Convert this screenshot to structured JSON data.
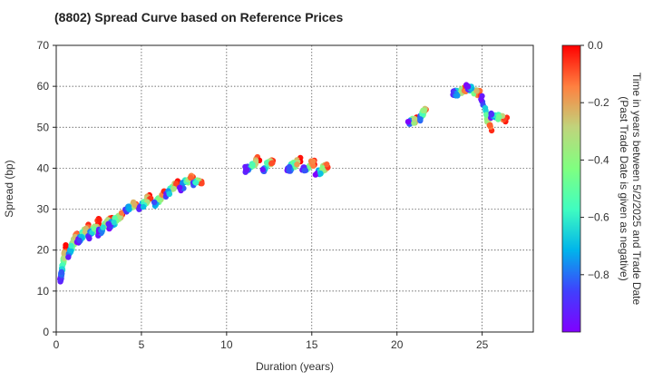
{
  "chart_data": {
    "type": "scatter",
    "title": "(8802)   Spread Curve based on Reference Prices",
    "xlabel": "Duration (years)",
    "ylabel": "Spread (bp)",
    "xlim": [
      0,
      28
    ],
    "ylim": [
      0,
      70
    ],
    "xticks": [
      0,
      5,
      10,
      15,
      20,
      25
    ],
    "yticks": [
      0,
      10,
      20,
      30,
      40,
      50,
      60,
      70
    ],
    "grid": true,
    "colorbar": {
      "label_line1": "Time in years between 5/2/2025 and Trade Date",
      "label_line2": "(Past Trade Date is given as negative)",
      "range": [
        -1.0,
        0.0
      ],
      "ticks": [
        0.0,
        -0.2,
        -0.4,
        -0.6,
        -0.8
      ],
      "tick_labels": [
        "0.0",
        "−0.2",
        "−0.4",
        "−0.6",
        "−0.8"
      ],
      "colormap": "rainbow",
      "stops": [
        "#8000ff",
        "#4040fd",
        "#00b4eb",
        "#40fdc0",
        "#80ff80",
        "#c0d47c",
        "#ff8040",
        "#ff0000"
      ]
    },
    "clusters": [
      {
        "x0": 0.2,
        "x1": 0.6,
        "y_new": 21,
        "y_old": 12.5,
        "n": 40
      },
      {
        "x0": 0.6,
        "x1": 1.3,
        "y_new": 24,
        "y_old": 18,
        "n": 30
      },
      {
        "x0": 1.2,
        "x1": 2.0,
        "y_new": 26,
        "y_old": 22,
        "n": 35
      },
      {
        "x0": 1.8,
        "x1": 2.6,
        "y_new": 27,
        "y_old": 23,
        "n": 35
      },
      {
        "x0": 2.4,
        "x1": 3.3,
        "y_new": 28,
        "y_old": 24,
        "n": 35
      },
      {
        "x0": 3.0,
        "x1": 4.0,
        "y_new": 29,
        "y_old": 25.5,
        "n": 35
      },
      {
        "x0": 4.0,
        "x1": 4.8,
        "y_new": 31.5,
        "y_old": 29.5,
        "n": 20
      },
      {
        "x0": 4.8,
        "x1": 5.6,
        "y_new": 33.5,
        "y_old": 30,
        "n": 22
      },
      {
        "x0": 5.6,
        "x1": 6.4,
        "y_new": 34,
        "y_old": 30.5,
        "n": 22
      },
      {
        "x0": 6.3,
        "x1": 7.2,
        "y_new": 36.5,
        "y_old": 33,
        "n": 22
      },
      {
        "x0": 7.2,
        "x1": 8.1,
        "y_new": 38.5,
        "y_old": 35,
        "n": 22
      },
      {
        "x0": 7.9,
        "x1": 8.6,
        "y_new": 36.5,
        "y_old": 36.5,
        "n": 14
      },
      {
        "x0": 11.0,
        "x1": 12.0,
        "y_new": 42.5,
        "y_old": 39.5,
        "n": 30
      },
      {
        "x0": 12.0,
        "x1": 12.8,
        "y_new": 42,
        "y_old": 39.5,
        "n": 22
      },
      {
        "x0": 13.5,
        "x1": 14.4,
        "y_new": 42,
        "y_old": 39.5,
        "n": 28
      },
      {
        "x0": 14.4,
        "x1": 15.2,
        "y_new": 41.5,
        "y_old": 39.5,
        "n": 22
      },
      {
        "x0": 15.2,
        "x1": 16.0,
        "y_new": 41,
        "y_old": 38,
        "n": 22
      },
      {
        "x0": 20.6,
        "x1": 21.2,
        "y_new": 52,
        "y_old": 51,
        "n": 18
      },
      {
        "x0": 21.2,
        "x1": 21.8,
        "y_new": 55,
        "y_old": 51.5,
        "n": 16
      },
      {
        "x0": 23.2,
        "x1": 24.2,
        "y_new": 59.5,
        "y_old": 58,
        "n": 30
      },
      {
        "x0": 24.0,
        "x1": 25.0,
        "y_new": 58,
        "y_old": 60,
        "n": 26
      },
      {
        "x0": 24.9,
        "x1": 25.6,
        "y_new": 49,
        "y_old": 57.5,
        "n": 20
      },
      {
        "x0": 25.4,
        "x1": 26.5,
        "y_new": 52,
        "y_old": 53,
        "n": 24
      }
    ]
  }
}
